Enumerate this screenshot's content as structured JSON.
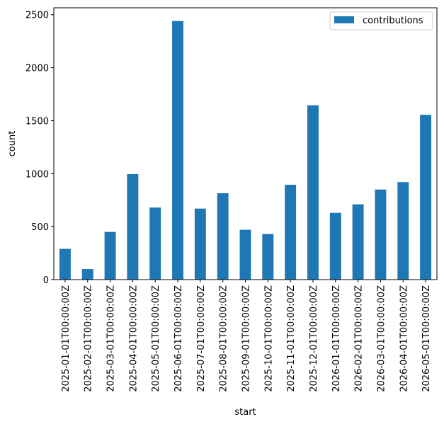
{
  "chart_data": {
    "type": "bar",
    "xlabel": "start",
    "ylabel": "count",
    "ylim": [
      0,
      2565
    ],
    "yticks": [
      0,
      500,
      1000,
      1500,
      2000,
      2500
    ],
    "grid": false,
    "legend_position": "top-right",
    "bar_color": "#1f77b4",
    "categories": [
      "2025-01-01T00:00:00Z",
      "2025-02-01T00:00:00Z",
      "2025-03-01T00:00:00Z",
      "2025-04-01T00:00:00Z",
      "2025-05-01T00:00:00Z",
      "2025-06-01T00:00:00Z",
      "2025-07-01T00:00:00Z",
      "2025-08-01T00:00:00Z",
      "2025-09-01T00:00:00Z",
      "2025-10-01T00:00:00Z",
      "2025-11-01T00:00:00Z",
      "2025-12-01T00:00:00Z",
      "2026-01-01T00:00:00Z",
      "2026-02-01T00:00:00Z",
      "2026-03-01T00:00:00Z",
      "2026-04-01T00:00:00Z",
      "2026-05-01T00:00:00Z"
    ],
    "series": [
      {
        "name": "contributions",
        "values": [
          290,
          100,
          450,
          995,
          680,
          2440,
          670,
          815,
          470,
          430,
          895,
          1645,
          630,
          710,
          850,
          920,
          1555
        ]
      }
    ]
  }
}
